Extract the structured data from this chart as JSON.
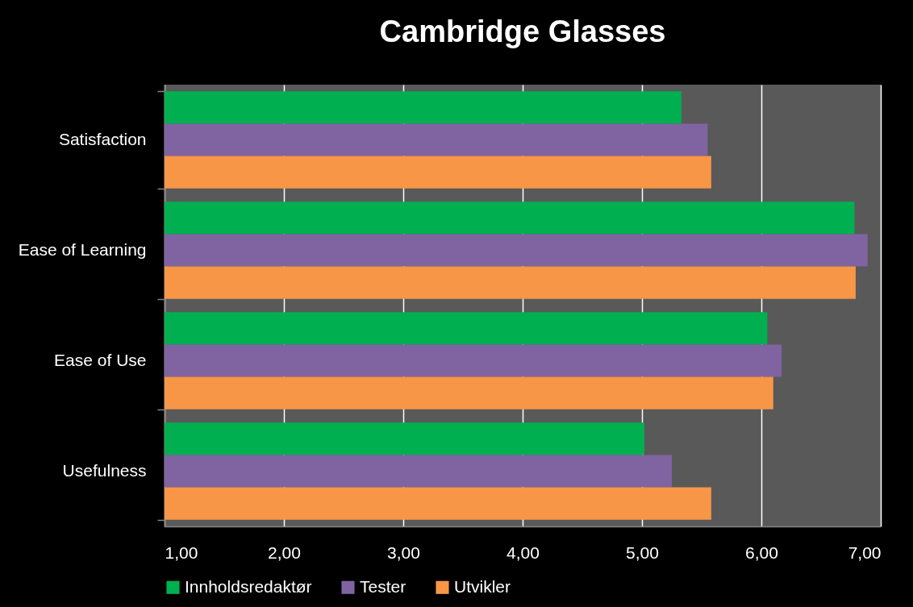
{
  "chart_data": {
    "type": "bar",
    "title": "Cambridge Glasses",
    "orientation": "horizontal",
    "categories": [
      "Satisfaction",
      "Ease of Learning",
      "Ease of Use",
      "Usefulness"
    ],
    "series": [
      {
        "name": "Innholdsredaktør",
        "color": "#00b050",
        "values": [
          5.33,
          6.78,
          6.05,
          5.02
        ]
      },
      {
        "name": "Tester",
        "color": "#8064a2",
        "values": [
          5.55,
          6.89,
          6.17,
          5.25
        ]
      },
      {
        "name": "Utvikler",
        "color": "#f79646",
        "values": [
          5.58,
          6.79,
          6.1,
          5.58
        ]
      }
    ],
    "xlim": [
      1,
      7
    ],
    "xticks": [
      {
        "value": 1,
        "label": "1,00"
      },
      {
        "value": 2,
        "label": "2,00"
      },
      {
        "value": 3,
        "label": "3,00"
      },
      {
        "value": 4,
        "label": "4,00"
      },
      {
        "value": 5,
        "label": "5,00"
      },
      {
        "value": 6,
        "label": "6,00"
      },
      {
        "value": 7,
        "label": "7,00"
      }
    ],
    "grid": "x",
    "legend": "bottom"
  }
}
